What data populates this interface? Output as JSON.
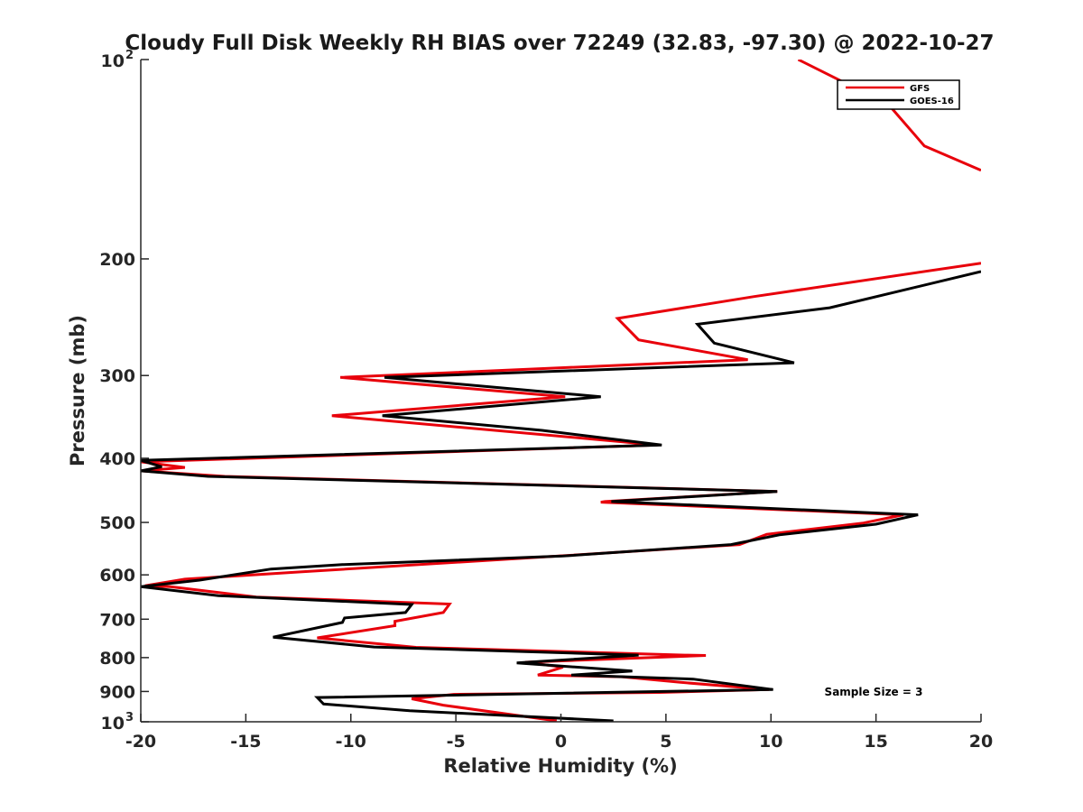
{
  "chart_data": {
    "type": "line",
    "title": "Cloudy Full Disk Weekly RH BIAS over 72249 (32.83, -97.30) @ 2022-10-27",
    "xlabel": "Relative Humidity (%)",
    "ylabel": "Pressure (mb)",
    "xlim": [
      -20,
      20
    ],
    "ylim": [
      100,
      1000
    ],
    "y_scale": "log",
    "y_reversed": true,
    "legend_position": "top-right",
    "x_ticks": [
      "-20",
      "-15",
      "-10",
      "-5",
      "0",
      "5",
      "10",
      "15",
      "20"
    ],
    "y_ticks": [
      {
        "value": 100,
        "label": "10",
        "sup": "2"
      },
      {
        "value": 200,
        "label": "200",
        "sup": ""
      },
      {
        "value": 300,
        "label": "300",
        "sup": ""
      },
      {
        "value": 400,
        "label": "400",
        "sup": ""
      },
      {
        "value": 500,
        "label": "500",
        "sup": ""
      },
      {
        "value": 600,
        "label": "600",
        "sup": ""
      },
      {
        "value": 700,
        "label": "700",
        "sup": ""
      },
      {
        "value": 800,
        "label": "800",
        "sup": ""
      },
      {
        "value": 900,
        "label": "900",
        "sup": ""
      },
      {
        "value": 1000,
        "label": "10",
        "sup": "3"
      }
    ],
    "annotation": "Sample Size = 3",
    "series": [
      {
        "name": "GFS",
        "color": "#e8000b",
        "points": [
          [
            11.3,
            100
          ],
          [
            15.6,
            117
          ],
          [
            17.3,
            135
          ],
          [
            20.0,
            147
          ],
          [
            null,
            null
          ],
          [
            20.0,
            203
          ],
          [
            9.2,
            228
          ],
          [
            2.7,
            246
          ],
          [
            3.7,
            265
          ],
          [
            8.9,
            284
          ],
          [
            -10.5,
            302
          ],
          [
            0.2,
            323
          ],
          [
            -10.9,
            345
          ],
          [
            4.6,
            382
          ],
          [
            -20.0,
            405
          ],
          [
            -17.9,
            413
          ],
          [
            -20.0,
            418
          ],
          [
            -16.0,
            426
          ],
          [
            10.3,
            449
          ],
          [
            2.1,
            465
          ],
          [
            1.9,
            466
          ],
          [
            16.3,
            487
          ],
          [
            14.4,
            501
          ],
          [
            9.8,
            521
          ],
          [
            8.5,
            540
          ],
          [
            -0.1,
            562
          ],
          [
            -12.5,
            594
          ],
          [
            -17.9,
            609
          ],
          [
            -19.8,
            623
          ],
          [
            -18.6,
            625
          ],
          [
            -14.5,
            648
          ],
          [
            -5.3,
            664
          ],
          [
            -5.6,
            684
          ],
          [
            -7.9,
            705
          ],
          [
            -7.9,
            716
          ],
          [
            -11.6,
            747
          ],
          [
            -6.9,
            772
          ],
          [
            5.9,
            793
          ],
          [
            6.9,
            794
          ],
          [
            -1.7,
            813
          ],
          [
            0.1,
            827
          ],
          [
            -1.1,
            850
          ],
          [
            2.9,
            855
          ],
          [
            5.7,
            872
          ],
          [
            9.9,
            894
          ],
          [
            4.7,
            903
          ],
          [
            -5.1,
            909
          ],
          [
            -7.1,
            923
          ],
          [
            -5.6,
            944
          ],
          [
            -0.2,
            997
          ]
        ]
      },
      {
        "name": "GOES-16",
        "color": "#000000",
        "points": [
          [
            20.0,
            209
          ],
          [
            12.8,
            237
          ],
          [
            6.5,
            251
          ],
          [
            7.3,
            268
          ],
          [
            11.1,
            287
          ],
          [
            -8.4,
            302
          ],
          [
            1.9,
            323
          ],
          [
            -8.5,
            345
          ],
          [
            -0.9,
            363
          ],
          [
            4.8,
            382
          ],
          [
            -20.0,
            403
          ],
          [
            -19.0,
            412
          ],
          [
            -20.0,
            418
          ],
          [
            -16.8,
            426
          ],
          [
            10.3,
            449
          ],
          [
            2.4,
            465
          ],
          [
            17.0,
            487
          ],
          [
            15.0,
            503
          ],
          [
            10.4,
            522
          ],
          [
            8.1,
            540
          ],
          [
            0.1,
            562
          ],
          [
            -10.4,
            579
          ],
          [
            -13.8,
            588
          ],
          [
            -17.2,
            611
          ],
          [
            -20.0,
            625
          ],
          [
            -16.3,
            645
          ],
          [
            -7.1,
            665
          ],
          [
            -7.4,
            684
          ],
          [
            -10.3,
            697
          ],
          [
            -10.4,
            708
          ],
          [
            -13.7,
            745
          ],
          [
            -8.9,
            771
          ],
          [
            3.7,
            793
          ],
          [
            -2.1,
            815
          ],
          [
            3.4,
            838
          ],
          [
            0.5,
            850
          ],
          [
            6.3,
            862
          ],
          [
            10.1,
            894
          ],
          [
            -11.6,
            919
          ],
          [
            -11.3,
            940
          ],
          [
            -7.2,
            962
          ],
          [
            2.5,
            997
          ]
        ]
      }
    ]
  }
}
